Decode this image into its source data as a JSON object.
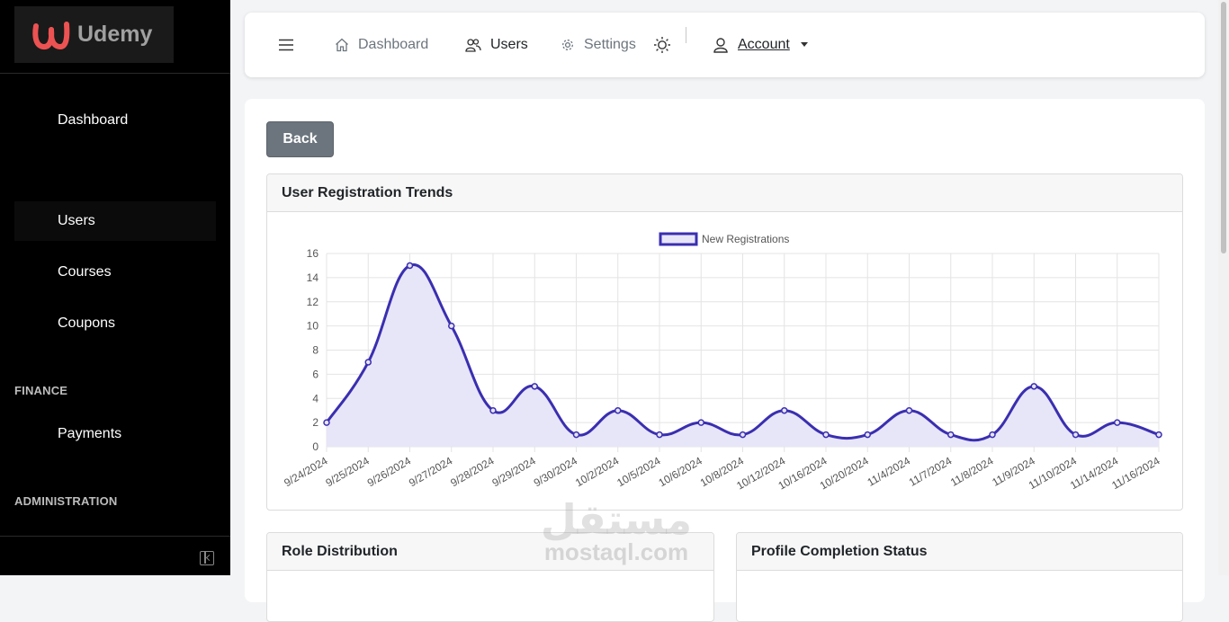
{
  "brand": {
    "name": "Udemy",
    "accent": "#ec5252"
  },
  "sidebar": {
    "items": [
      {
        "label": "Dashboard"
      },
      {
        "label": "Users"
      },
      {
        "label": "Courses"
      },
      {
        "label": "Coupons"
      },
      {
        "label": "Payments"
      }
    ],
    "sections": [
      {
        "label": "FINANCE"
      },
      {
        "label": "ADMINISTRATION"
      }
    ],
    "collapse_icon": "sidebar-collapse-icon"
  },
  "topbar": {
    "menu_icon": "hamburger-icon",
    "links": [
      {
        "label": "Dashboard",
        "icon": "home-icon"
      },
      {
        "label": "Users",
        "icon": "users-icon"
      },
      {
        "label": "Settings",
        "icon": "gear-icon"
      }
    ],
    "theme_icon": "sun-icon",
    "account": {
      "label": "Account",
      "icon": "user-icon"
    }
  },
  "main": {
    "back_label": "Back",
    "panels": {
      "trends": "User Registration Trends",
      "roles": "Role Distribution",
      "profile": "Profile Completion Status"
    }
  },
  "watermark": {
    "arabic": "مستقل",
    "latin": "mostaql.com"
  },
  "chart_data": {
    "type": "line",
    "title": "",
    "legend": {
      "position": "top",
      "entries": [
        "New Registrations"
      ]
    },
    "categories": [
      "9/24/2024",
      "9/25/2024",
      "9/26/2024",
      "9/27/2024",
      "9/28/2024",
      "9/29/2024",
      "9/30/2024",
      "10/2/2024",
      "10/5/2024",
      "10/6/2024",
      "10/8/2024",
      "10/12/2024",
      "10/16/2024",
      "10/20/2024",
      "11/4/2024",
      "11/7/2024",
      "11/8/2024",
      "11/9/2024",
      "11/10/2024",
      "11/14/2024",
      "11/16/2024"
    ],
    "series": [
      {
        "name": "New Registrations",
        "values": [
          2,
          7,
          15,
          10,
          3,
          5,
          1,
          3,
          1,
          2,
          1,
          3,
          1,
          1,
          3,
          1,
          1,
          5,
          1,
          2,
          1
        ],
        "color": "#3a2fb0",
        "fill": "#e7e5f8"
      }
    ],
    "ylim": [
      0,
      16
    ],
    "yticks": [
      0,
      2,
      4,
      6,
      8,
      10,
      12,
      14,
      16
    ],
    "grid": true,
    "smooth": true
  }
}
